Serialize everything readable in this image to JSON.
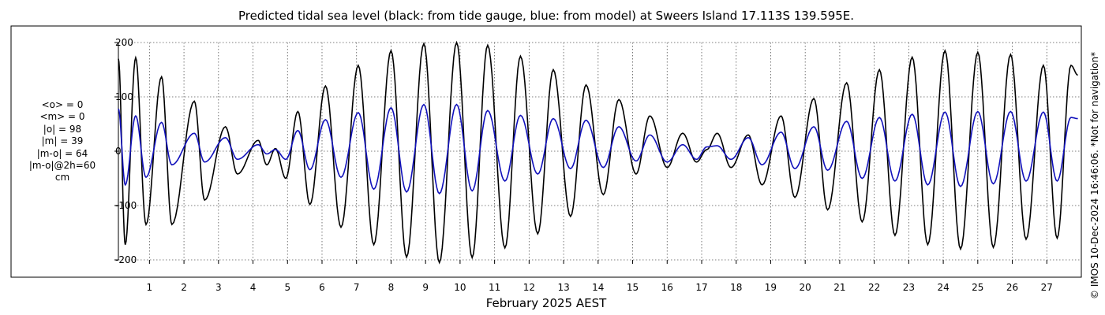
{
  "chart_data": {
    "type": "line",
    "title": "Predicted tidal sea level (black: from tide gauge, blue: from model) at Sweers Island 17.113S 139.595E.",
    "xlabel": "February 2025 AEST",
    "ylabel": "",
    "xlim": [
      0.1,
      28.0
    ],
    "ylim": [
      -200,
      200
    ],
    "x_ticks": [
      1,
      2,
      3,
      4,
      5,
      6,
      7,
      8,
      9,
      10,
      11,
      12,
      13,
      14,
      15,
      16,
      17,
      18,
      19,
      20,
      21,
      22,
      23,
      24,
      25,
      26,
      27
    ],
    "x_tick_labels": [
      "1",
      "2",
      "3",
      "4",
      "5",
      "6",
      "7",
      "8",
      "9",
      "10",
      "11",
      "12",
      "13",
      "14",
      "15",
      "16",
      "17",
      "18",
      "19",
      "20",
      "21",
      "22",
      "23",
      "24",
      "25",
      "26",
      "27"
    ],
    "y_ticks": [
      -200,
      -100,
      0,
      100,
      200
    ],
    "y_tick_labels": [
      "-200",
      "-100",
      "0",
      "100",
      "200"
    ],
    "grid": true,
    "series": [
      {
        "color": "#000000",
        "points": [
          [
            0.1,
            170
          ],
          [
            0.3,
            -172
          ],
          [
            0.6,
            172
          ],
          [
            0.9,
            -135
          ],
          [
            1.35,
            137
          ],
          [
            1.65,
            -135
          ],
          [
            2.3,
            92
          ],
          [
            2.6,
            -90
          ],
          [
            3.2,
            45
          ],
          [
            3.55,
            -42
          ],
          [
            4.15,
            20
          ],
          [
            4.4,
            -25
          ],
          [
            4.65,
            5
          ],
          [
            4.95,
            -50
          ],
          [
            5.3,
            73
          ],
          [
            5.65,
            -98
          ],
          [
            6.1,
            120
          ],
          [
            6.55,
            -140
          ],
          [
            7.05,
            158
          ],
          [
            7.5,
            -172
          ],
          [
            8.0,
            185
          ],
          [
            8.45,
            -195
          ],
          [
            8.95,
            198
          ],
          [
            9.4,
            -205
          ],
          [
            9.9,
            200
          ],
          [
            10.35,
            -196
          ],
          [
            10.8,
            195
          ],
          [
            11.3,
            -178
          ],
          [
            11.75,
            175
          ],
          [
            12.25,
            -152
          ],
          [
            12.7,
            150
          ],
          [
            13.2,
            -120
          ],
          [
            13.65,
            122
          ],
          [
            14.15,
            -80
          ],
          [
            14.6,
            95
          ],
          [
            15.1,
            -42
          ],
          [
            15.5,
            65
          ],
          [
            16.0,
            -30
          ],
          [
            16.45,
            33
          ],
          [
            16.85,
            -20
          ],
          [
            17.15,
            3
          ],
          [
            17.45,
            33
          ],
          [
            17.85,
            -30
          ],
          [
            18.35,
            30
          ],
          [
            18.75,
            -62
          ],
          [
            19.3,
            65
          ],
          [
            19.7,
            -85
          ],
          [
            20.25,
            97
          ],
          [
            20.65,
            -108
          ],
          [
            21.2,
            126
          ],
          [
            21.65,
            -130
          ],
          [
            22.15,
            150
          ],
          [
            22.6,
            -155
          ],
          [
            23.1,
            173
          ],
          [
            23.55,
            -172
          ],
          [
            24.05,
            185
          ],
          [
            24.5,
            -180
          ],
          [
            25.0,
            182
          ],
          [
            25.45,
            -177
          ],
          [
            25.95,
            178
          ],
          [
            26.4,
            -162
          ],
          [
            26.9,
            158
          ],
          [
            27.3,
            -160
          ],
          [
            27.7,
            158
          ],
          [
            27.9,
            140
          ]
        ]
      },
      {
        "color": "#1111bb",
        "points": [
          [
            0.1,
            78
          ],
          [
            0.3,
            -62
          ],
          [
            0.6,
            65
          ],
          [
            0.9,
            -48
          ],
          [
            1.35,
            53
          ],
          [
            1.65,
            -25
          ],
          [
            2.3,
            33
          ],
          [
            2.6,
            -20
          ],
          [
            3.2,
            25
          ],
          [
            3.55,
            -15
          ],
          [
            4.15,
            12
          ],
          [
            4.4,
            -5
          ],
          [
            4.65,
            3
          ],
          [
            4.95,
            -15
          ],
          [
            5.3,
            38
          ],
          [
            5.65,
            -34
          ],
          [
            6.1,
            58
          ],
          [
            6.55,
            -48
          ],
          [
            7.05,
            71
          ],
          [
            7.5,
            -70
          ],
          [
            8.0,
            80
          ],
          [
            8.45,
            -75
          ],
          [
            8.95,
            86
          ],
          [
            9.4,
            -78
          ],
          [
            9.9,
            86
          ],
          [
            10.35,
            -73
          ],
          [
            10.8,
            75
          ],
          [
            11.3,
            -55
          ],
          [
            11.75,
            66
          ],
          [
            12.25,
            -42
          ],
          [
            12.7,
            60
          ],
          [
            13.2,
            -32
          ],
          [
            13.65,
            57
          ],
          [
            14.15,
            -30
          ],
          [
            14.6,
            45
          ],
          [
            15.1,
            -18
          ],
          [
            15.5,
            30
          ],
          [
            16.0,
            -20
          ],
          [
            16.45,
            12
          ],
          [
            16.85,
            -15
          ],
          [
            17.15,
            8
          ],
          [
            17.45,
            10
          ],
          [
            17.85,
            -15
          ],
          [
            18.35,
            25
          ],
          [
            18.75,
            -25
          ],
          [
            19.3,
            35
          ],
          [
            19.7,
            -32
          ],
          [
            20.25,
            45
          ],
          [
            20.65,
            -35
          ],
          [
            21.2,
            55
          ],
          [
            21.65,
            -50
          ],
          [
            22.15,
            62
          ],
          [
            22.6,
            -55
          ],
          [
            23.1,
            68
          ],
          [
            23.55,
            -62
          ],
          [
            24.05,
            72
          ],
          [
            24.5,
            -65
          ],
          [
            25.0,
            73
          ],
          [
            25.45,
            -60
          ],
          [
            25.95,
            73
          ],
          [
            26.4,
            -55
          ],
          [
            26.9,
            72
          ],
          [
            27.3,
            -55
          ],
          [
            27.7,
            62
          ],
          [
            27.9,
            60
          ]
        ]
      }
    ]
  },
  "stats_label": "cm",
  "stats": [
    "<o> = 0",
    "<m> = 0",
    "|o| = 98",
    "|m| = 39",
    "|m-o| = 64",
    "|m-o|@2h=60"
  ],
  "credit": "© IMOS 10-Dec-2024 16:46:06. *Not for navigation*"
}
